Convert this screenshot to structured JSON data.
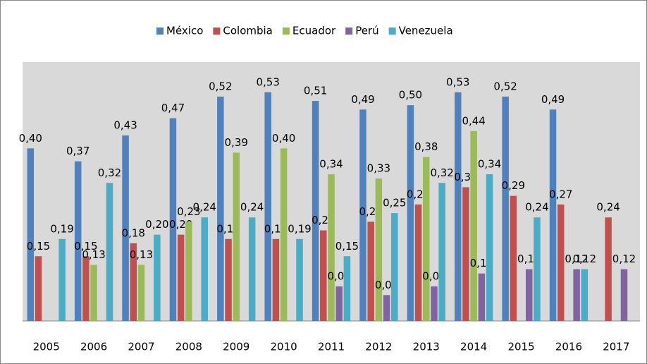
{
  "chart_data": {
    "type": "bar",
    "categories": [
      "2005",
      "2006",
      "2007",
      "2008",
      "2009",
      "2010",
      "2011",
      "2012",
      "2013",
      "2014",
      "2015",
      "2016",
      "2017"
    ],
    "series": [
      {
        "name": "México",
        "color": "#4f81bd",
        "values": [
          0.4,
          0.37,
          0.43,
          0.47,
          0.52,
          0.53,
          0.51,
          0.49,
          0.5,
          0.53,
          0.52,
          0.49,
          null
        ],
        "value_labels": [
          "0,40",
          "0,37",
          "0,43",
          "0,47",
          "0,52",
          "0,53",
          "0,51",
          "0,49",
          "0,50",
          "0,53",
          "0,52",
          "0,49",
          null
        ]
      },
      {
        "name": "Colombia",
        "color": "#c0504d",
        "values": [
          0.15,
          0.15,
          0.18,
          0.2,
          0.19,
          0.19,
          0.21,
          0.23,
          0.27,
          0.31,
          0.29,
          0.27,
          0.24
        ],
        "value_labels": [
          "0,15",
          "0,15",
          "0,18",
          "0,20",
          "0,19",
          "0,19",
          "0,21",
          "0,23",
          "0,27",
          "0,31",
          "0,29",
          "0,27",
          "0,24"
        ]
      },
      {
        "name": "Ecuador",
        "color": "#9bbb59",
        "values": [
          null,
          0.13,
          0.13,
          0.23,
          0.39,
          0.4,
          0.34,
          0.33,
          0.38,
          0.44,
          null,
          null,
          null
        ],
        "value_labels": [
          null,
          "0,13",
          "0,13",
          "0,23",
          "0,39",
          "0,40",
          "0,34",
          "0,33",
          "0,38",
          "0,44",
          null,
          null,
          null
        ]
      },
      {
        "name": "Perú",
        "color": "#8064a2",
        "values": [
          null,
          null,
          null,
          null,
          null,
          null,
          0.08,
          0.06,
          0.08,
          0.11,
          0.12,
          0.12,
          0.12
        ],
        "value_labels": [
          null,
          null,
          null,
          null,
          null,
          null,
          "0,08",
          "0,06",
          "0,08",
          "0,11",
          "0,12",
          "0,12",
          "0,12"
        ]
      },
      {
        "name": "Venezuela",
        "color": "#4bacc6",
        "values": [
          0.19,
          0.32,
          0.2,
          0.24,
          0.24,
          0.19,
          0.15,
          0.25,
          0.32,
          0.34,
          0.24,
          0.12,
          null
        ],
        "value_labels": [
          "0,19",
          "0,32",
          "0,20",
          "0,24",
          "0,24",
          "0,19",
          "0,15",
          "0,25",
          "0,32",
          "0,34",
          "0,24",
          "0,12",
          null
        ]
      }
    ],
    "ylim": [
      0,
      0.6
    ],
    "legend": "top"
  }
}
